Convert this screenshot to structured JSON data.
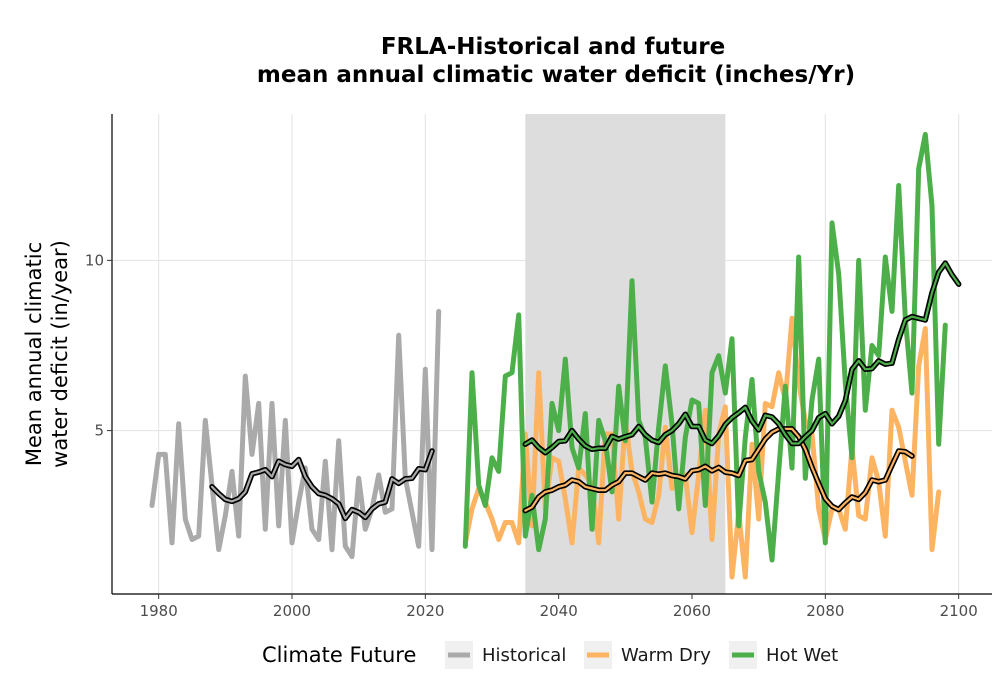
{
  "chart_data": {
    "type": "line",
    "title": [
      "FRLA-Historical and future",
      "mean annual climatic water deficit (inches/Yr)"
    ],
    "ylabel": [
      "Mean annual climatic",
      "water deficit (in/year)"
    ],
    "xlim": [
      1973,
      2105
    ],
    "ylim": [
      0.2,
      14.3
    ],
    "xticks": [
      1980,
      2000,
      2020,
      2040,
      2060,
      2080,
      2100
    ],
    "yticks": [
      5,
      10
    ],
    "grid": true,
    "shaded_period": [
      2035,
      2065
    ],
    "legend": {
      "title": "Climate Future",
      "placement": "bottom",
      "entries": [
        {
          "label": "Historical",
          "color": "#aaaaaa"
        },
        {
          "label": "Warm Dry",
          "color": "#fdb462"
        },
        {
          "label": "Hot Wet",
          "color": "#4daf4a"
        }
      ]
    },
    "series": [
      {
        "name": "Historical",
        "color": "#aaaaaa",
        "x_start": 1979,
        "values": [
          2.8,
          4.3,
          4.3,
          1.7,
          5.2,
          2.4,
          1.8,
          1.9,
          5.3,
          3.4,
          1.5,
          2.5,
          3.8,
          1.9,
          6.6,
          4.3,
          5.8,
          2.1,
          5.8,
          2.2,
          5.3,
          1.7,
          2.9,
          3.9,
          2.1,
          1.8,
          4.1,
          1.5,
          4.7,
          1.6,
          1.3,
          3.6,
          2.1,
          2.7,
          3.7,
          2.6,
          2.7,
          7.8,
          3.6,
          2.6,
          1.6,
          6.8,
          1.5,
          8.5
        ],
        "smooth_x_start": 1988,
        "smooth": [
          3.35,
          3.15,
          2.98,
          2.92,
          3.0,
          3.2,
          3.73,
          3.78,
          3.85,
          3.65,
          4.1,
          4.0,
          3.95,
          4.15,
          3.65,
          3.35,
          3.15,
          3.1,
          3.0,
          2.85,
          2.42,
          2.68,
          2.6,
          2.45,
          2.7,
          2.85,
          2.9,
          3.58,
          3.45,
          3.58,
          3.6,
          3.88,
          3.85,
          4.4
        ]
      },
      {
        "name": "Warm Dry",
        "color": "#fdb462",
        "x_start": 2026,
        "values": [
          1.7,
          2.7,
          3.3,
          2.9,
          2.4,
          1.8,
          2.3,
          2.3,
          1.7,
          4.9,
          2.2,
          6.7,
          2.7,
          4.2,
          4.1,
          3.0,
          1.7,
          3.9,
          3.7,
          3.4,
          1.7,
          4.9,
          4.9,
          2.4,
          5.3,
          3.8,
          3.2,
          2.4,
          2.3,
          3.1,
          5.1,
          3.3,
          3.6,
          3.7,
          2.0,
          3.7,
          5.6,
          1.8,
          4.9,
          5.7,
          0.7,
          2.6,
          0.7,
          4.6,
          2.4,
          5.8,
          5.7,
          6.7,
          5.9,
          8.3,
          6.4,
          5.3,
          4.9,
          2.7,
          1.8,
          2.7,
          2.7,
          2.1,
          4.5,
          2.5,
          2.4,
          4.2,
          3.5,
          1.9,
          5.6,
          5.1,
          4.1,
          3.1,
          6.9,
          8.0,
          1.5,
          3.2
        ],
        "smooth_x_start": 2035,
        "smooth": [
          2.65,
          2.75,
          3.05,
          3.2,
          3.25,
          3.35,
          3.4,
          3.55,
          3.5,
          3.35,
          3.3,
          3.25,
          3.25,
          3.4,
          3.5,
          3.75,
          3.75,
          3.65,
          3.55,
          3.75,
          3.72,
          3.75,
          3.68,
          3.65,
          3.58,
          3.82,
          3.85,
          3.95,
          3.82,
          3.92,
          3.78,
          3.75,
          3.68,
          4.12,
          4.15,
          4.45,
          4.75,
          4.95,
          5.05,
          5.05,
          5.05,
          4.82,
          4.45,
          3.92,
          3.45,
          3.0,
          2.78,
          2.68,
          2.88,
          3.05,
          2.98,
          3.18,
          3.55,
          3.5,
          3.55,
          3.98,
          4.4,
          4.38,
          4.25
        ]
      },
      {
        "name": "Hot Wet",
        "color": "#4daf4a",
        "x_start": 2026,
        "values": [
          1.6,
          6.7,
          3.4,
          2.8,
          4.2,
          3.8,
          6.6,
          6.7,
          8.4,
          1.9,
          3.1,
          1.5,
          2.4,
          5.8,
          5.0,
          7.1,
          4.5,
          3.9,
          5.5,
          2.1,
          5.3,
          4.7,
          3.2,
          6.3,
          4.7,
          9.4,
          5.3,
          4.8,
          2.9,
          5.1,
          6.9,
          5.2,
          2.7,
          4.8,
          5.9,
          5.8,
          2.8,
          6.7,
          7.2,
          6.1,
          7.7,
          2.2,
          4.8,
          6.5,
          3.8,
          2.9,
          1.2,
          3.8,
          6.3,
          3.9,
          10.1,
          3.6,
          5.9,
          7.1,
          1.7,
          11.1,
          9.6,
          6.4,
          4.2,
          10.0,
          5.6,
          7.5,
          7.2,
          10.1,
          8.5,
          12.2,
          8.3,
          6.1,
          12.7,
          13.7,
          11.6,
          4.6,
          8.1
        ],
        "smooth_x_start": 2035,
        "smooth": [
          4.6,
          4.72,
          4.5,
          4.35,
          4.5,
          4.68,
          4.7,
          5.0,
          4.75,
          4.55,
          4.45,
          4.48,
          4.48,
          4.83,
          4.75,
          4.82,
          4.88,
          5.12,
          4.88,
          4.72,
          4.65,
          4.88,
          5.0,
          5.2,
          5.48,
          5.12,
          5.12,
          4.72,
          4.62,
          4.85,
          5.18,
          5.38,
          5.52,
          5.68,
          5.28,
          5.02,
          5.45,
          5.4,
          5.2,
          4.88,
          4.62,
          4.62,
          4.82,
          5.0,
          5.38,
          5.5,
          5.2,
          5.42,
          5.88,
          6.8,
          7.05,
          6.8,
          6.82,
          7.05,
          6.95,
          6.98,
          7.68,
          8.25,
          8.35,
          8.3,
          8.25,
          9.05,
          9.65,
          9.92,
          9.58,
          9.3
        ]
      }
    ]
  }
}
